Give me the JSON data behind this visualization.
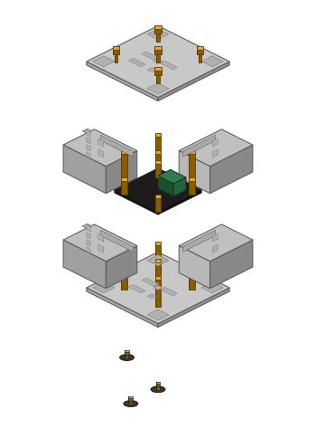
{
  "bg": "#ffffff",
  "plate_top": "#c8c8c8",
  "plate_left": "#a8a8a8",
  "plate_right": "#909090",
  "plate_edge": "#606060",
  "panel_top": "#c0c0c0",
  "panel_left": "#a0a0a0",
  "panel_right": "#888888",
  "panel_edge": "#555555",
  "standoff_mid": "#c8860a",
  "standoff_dark": "#8a5c00",
  "standoff_top": "#e8a828",
  "screw_mid": "#c8860a",
  "screw_dark": "#8a5c00",
  "screw_top": "#e8a828",
  "pcb_top": "#1c1c1c",
  "pcb_left": "#111111",
  "pcb_right": "#0a0a0a",
  "relay_top": "#2e7d4f",
  "relay_left": "#1a5030",
  "relay_right": "#256040",
  "rubber_c": "#383838",
  "detail_c": "#b0b0b0",
  "detail_e": "#888888",
  "slot_c": "#aaaaaa",
  "hole_c": "#909090"
}
